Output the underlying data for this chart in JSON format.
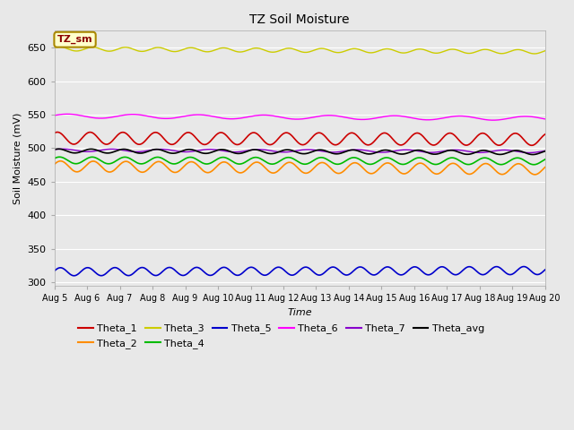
{
  "title": "TZ Soil Moisture",
  "xlabel": "Time",
  "ylabel": "Soil Moisture (mV)",
  "legend_label": "TZ_sm",
  "background_color": "#e8e8e8",
  "axes_bg_color": "#e8e8e8",
  "ylim": [
    295,
    675
  ],
  "yticks": [
    300,
    350,
    400,
    450,
    500,
    550,
    600,
    650
  ],
  "x_tick_labels": [
    "Aug 5",
    "Aug 6",
    "Aug 7",
    "Aug 8",
    "Aug 9",
    "Aug 10",
    "Aug 11",
    "Aug 12",
    "Aug 13",
    "Aug 14",
    "Aug 15",
    "Aug 16",
    "Aug 17",
    "Aug 18",
    "Aug 19",
    "Aug 20"
  ],
  "Theta_1": {
    "color": "#cc0000",
    "base": 515,
    "amp": 9,
    "trend": -0.005,
    "period": 24
  },
  "Theta_2": {
    "color": "#ff8c00",
    "base": 473,
    "amp": 8,
    "trend": -0.012,
    "period": 24
  },
  "Theta_3": {
    "color": "#cccc00",
    "base": 648,
    "amp": 3,
    "trend": -0.012,
    "period": 24
  },
  "Theta_4": {
    "color": "#00bb00",
    "base": 482,
    "amp": 5,
    "trend": -0.004,
    "period": 24
  },
  "Theta_5": {
    "color": "#0000cc",
    "base": 316,
    "amp": 6,
    "trend": 0.005,
    "period": 20
  },
  "Theta_6": {
    "color": "#ff00ff",
    "base": 548,
    "amp": 3,
    "trend": -0.01,
    "period": 48
  },
  "Theta_7": {
    "color": "#8800cc",
    "base": 497,
    "amp": 2,
    "trend": -0.005,
    "period": 36
  },
  "Theta_avg": {
    "color": "#000000",
    "base": 496,
    "amp": 3,
    "trend": -0.007,
    "period": 24
  }
}
